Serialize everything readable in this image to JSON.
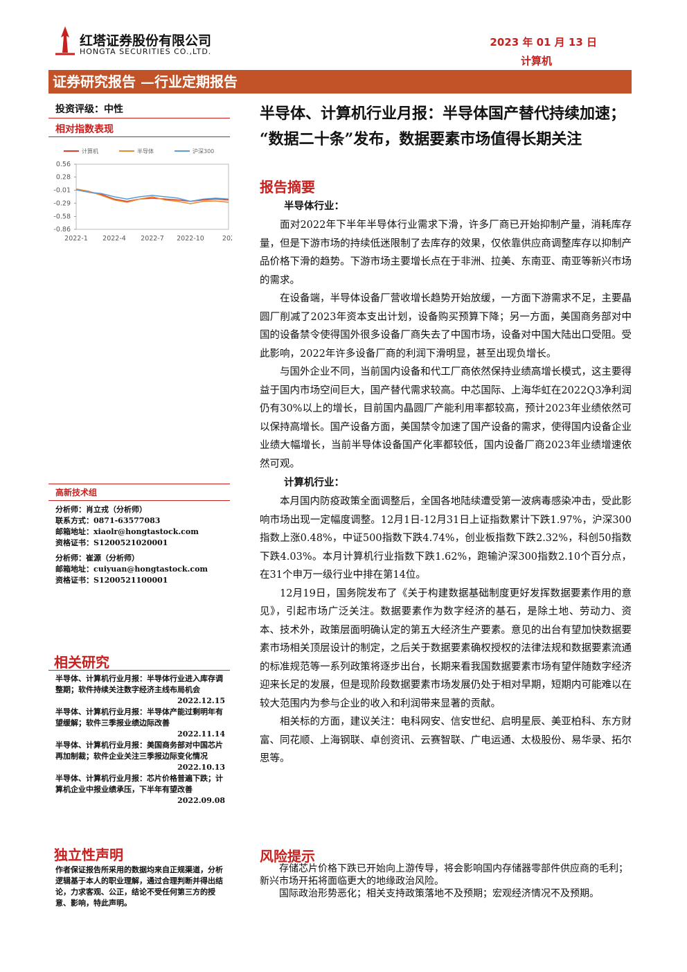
{
  "header": {
    "company_cn": "红塔证券股份有限公司",
    "company_en": "HONGTA SECURITIES CO.,LTD.",
    "date": "2023 年 01 月 13 日",
    "sector": "计算机"
  },
  "banner": "证券研究报告 —行业定期报告",
  "sidebar": {
    "rating": "投资评级：中性",
    "index_title": "相对指数表现",
    "team": "高新技术组",
    "analysts": [
      "分析师：肖立戎（分析师）",
      "联系方式：0871-63577083",
      "邮箱地址：xiaolr@hongtastock.com",
      "资格证书：S1200521020001",
      "分析师：崔源（分析师）",
      "邮箱地址：cuiyuan@hongtastock.com",
      "资格证书：S1200521100001"
    ],
    "related_title": "相关研究",
    "related": [
      {
        "text": "半导体、计算机行业月报：半导体行业进入库存调整期；软件持续关注数字经济主线布局机会",
        "date": "2022.12.15"
      },
      {
        "text": "半导体、计算机行业月报：半导体产能过剩明年有望缓解；软件三季报业绩边际改善",
        "date": "2022.11.14"
      },
      {
        "text": "半导体、计算机行业月报：美国商务部对中国芯片再加制裁；软件企业关注三季报边际变化情况",
        "date": "2022.10.13"
      },
      {
        "text": "半导体、计算机行业月报：芯片价格普遍下跌；计算机企业中报业绩承压，下半年有望改善",
        "date": "2022.09.08"
      }
    ],
    "disclaimer_title": "独立性声明",
    "disclaimer": "作者保证报告所采用的数据均来自正规渠道，分析逻辑基于本人的职业理解，通过合理判断并得出结论，力求客观、公正，结论不受任何第三方的授意、影响，特此声明。"
  },
  "chart_data": {
    "type": "line",
    "categories": [
      "2022-1",
      null,
      null,
      "2022-4",
      null,
      null,
      "2022-7",
      null,
      null,
      "2022-10",
      null,
      null,
      "202"
    ],
    "series": [
      {
        "name": "计算机",
        "color": "#d9402b",
        "values": [
          0,
          -0.05,
          -0.1,
          -0.2,
          -0.25,
          -0.2,
          -0.18,
          -0.2,
          -0.22,
          -0.25,
          -0.22,
          -0.2,
          -0.22
        ]
      },
      {
        "name": "半导体",
        "color": "#e8892a",
        "values": [
          0.02,
          -0.03,
          -0.12,
          -0.22,
          -0.27,
          -0.2,
          -0.15,
          -0.22,
          -0.25,
          -0.3,
          -0.25,
          -0.24,
          -0.27
        ]
      },
      {
        "name": "沪深300",
        "color": "#5b9bd5",
        "values": [
          0,
          -0.05,
          -0.08,
          -0.15,
          -0.2,
          -0.15,
          -0.12,
          -0.15,
          -0.18,
          -0.25,
          -0.2,
          -0.18,
          -0.2
        ]
      }
    ],
    "ylim": [
      -0.86,
      0.56
    ],
    "yticks": [
      0.56,
      0.28,
      -0.01,
      -0.29,
      -0.58,
      -0.86
    ]
  },
  "main": {
    "title": "半导体、计算机行业月报：半导体国产替代持续加速；“数据二十条”发布，数据要素市场值得长期关注",
    "summary_heading": "报告摘要",
    "sections": [
      {
        "heading": "半导体行业：",
        "paragraphs": [
          "面对2022年下半年半导体行业需求下滑，许多厂商已开始抑制产量，消耗库存量，但是下游市场的持续低迷限制了去库存的效果，仅依靠供应商调整库存以抑制产品价格下滑的趋势。下游市场主要增长点在于非洲、拉美、东南亚、南亚等新兴市场的需求。",
          "在设备端，半导体设备厂营收增长趋势开始放缓，一方面下游需求不足，主要晶圆厂削减了2023年资本支出计划，设备购买预算下降；另一方面，美国商务部对中国的设备禁令使得国外很多设备厂商失去了中国市场，设备对中国大陆出口受阻。受此影响，2022年许多设备厂商的利润下滑明显，甚至出现负增长。",
          "与国外企业不同，当前国内设备和代工厂商依然保持业绩高增长模式，这主要得益于国内市场空间巨大，国产替代需求较高。中芯国际、上海华虹在2022Q3净利润仍有30%以上的增长，目前国内晶圆厂产能利用率都较高，预计2023年业绩依然可以保持高增长。国产设备方面，美国禁令加速了国产设备的需求，使得国内设备企业业绩大幅增长，当前半导体设备国产化率都较低，国内设备厂商2023年业绩增速依然可观。"
        ]
      },
      {
        "heading": "计算机行业：",
        "paragraphs": [
          "本月国内防疫政策全面调整后，全国各地陆续遭受第一波病毒感染冲击，受此影响市场出现一定幅度调整。12月1日-12月31日上证指数累计下跌1.97%，沪深300指数上涨0.48%，中证500指数下跌4.74%，创业板指数下跌2.32%，科创50指数下跌4.03%。本月计算机行业指数下跌1.62%，跑输沪深300指数2.10个百分点，在31个申万一级行业中排在第14位。",
          "12月19日，国务院发布了《关于构建数据基础制度更好发挥数据要素作用的意见》，引起市场广泛关注。数据要素作为数字经济的基石，是除土地、劳动力、资本、技术外，政策层面明确认定的第五大经济生产要素。意见的出台有望加快数据要素市场相关顶层设计的制定，之后关于数据要素确权授权的法律法规和数据要素流通的标准规范等一系列政策将逐步出台，长期来看我国数据要素市场有望伴随数字经济迎来长足的发展，但是现阶段数据要素市场发展仍处于相对早期，短期内可能难以在较大范围内为参与企业的收入和利润带来显著的贡献。",
          "相关标的方面，建议关注：电科网安、信安世纪、启明星辰、美亚柏科、东方财富、同花顺、上海钢联、卓创资讯、云赛智联、广电运通、太极股份、易华录、拓尔思等。"
        ]
      }
    ],
    "risk_title": "风险提示",
    "risks": [
      "存储芯片价格下跌已开始向上游传导，将会影响国内存储器零部件供应商的毛利；新兴市场开拓将面临更大的地缘政治风险。",
      "国际政治形势恶化；相关支持政策落地不及预期；宏观经济情况不及预期。"
    ]
  }
}
